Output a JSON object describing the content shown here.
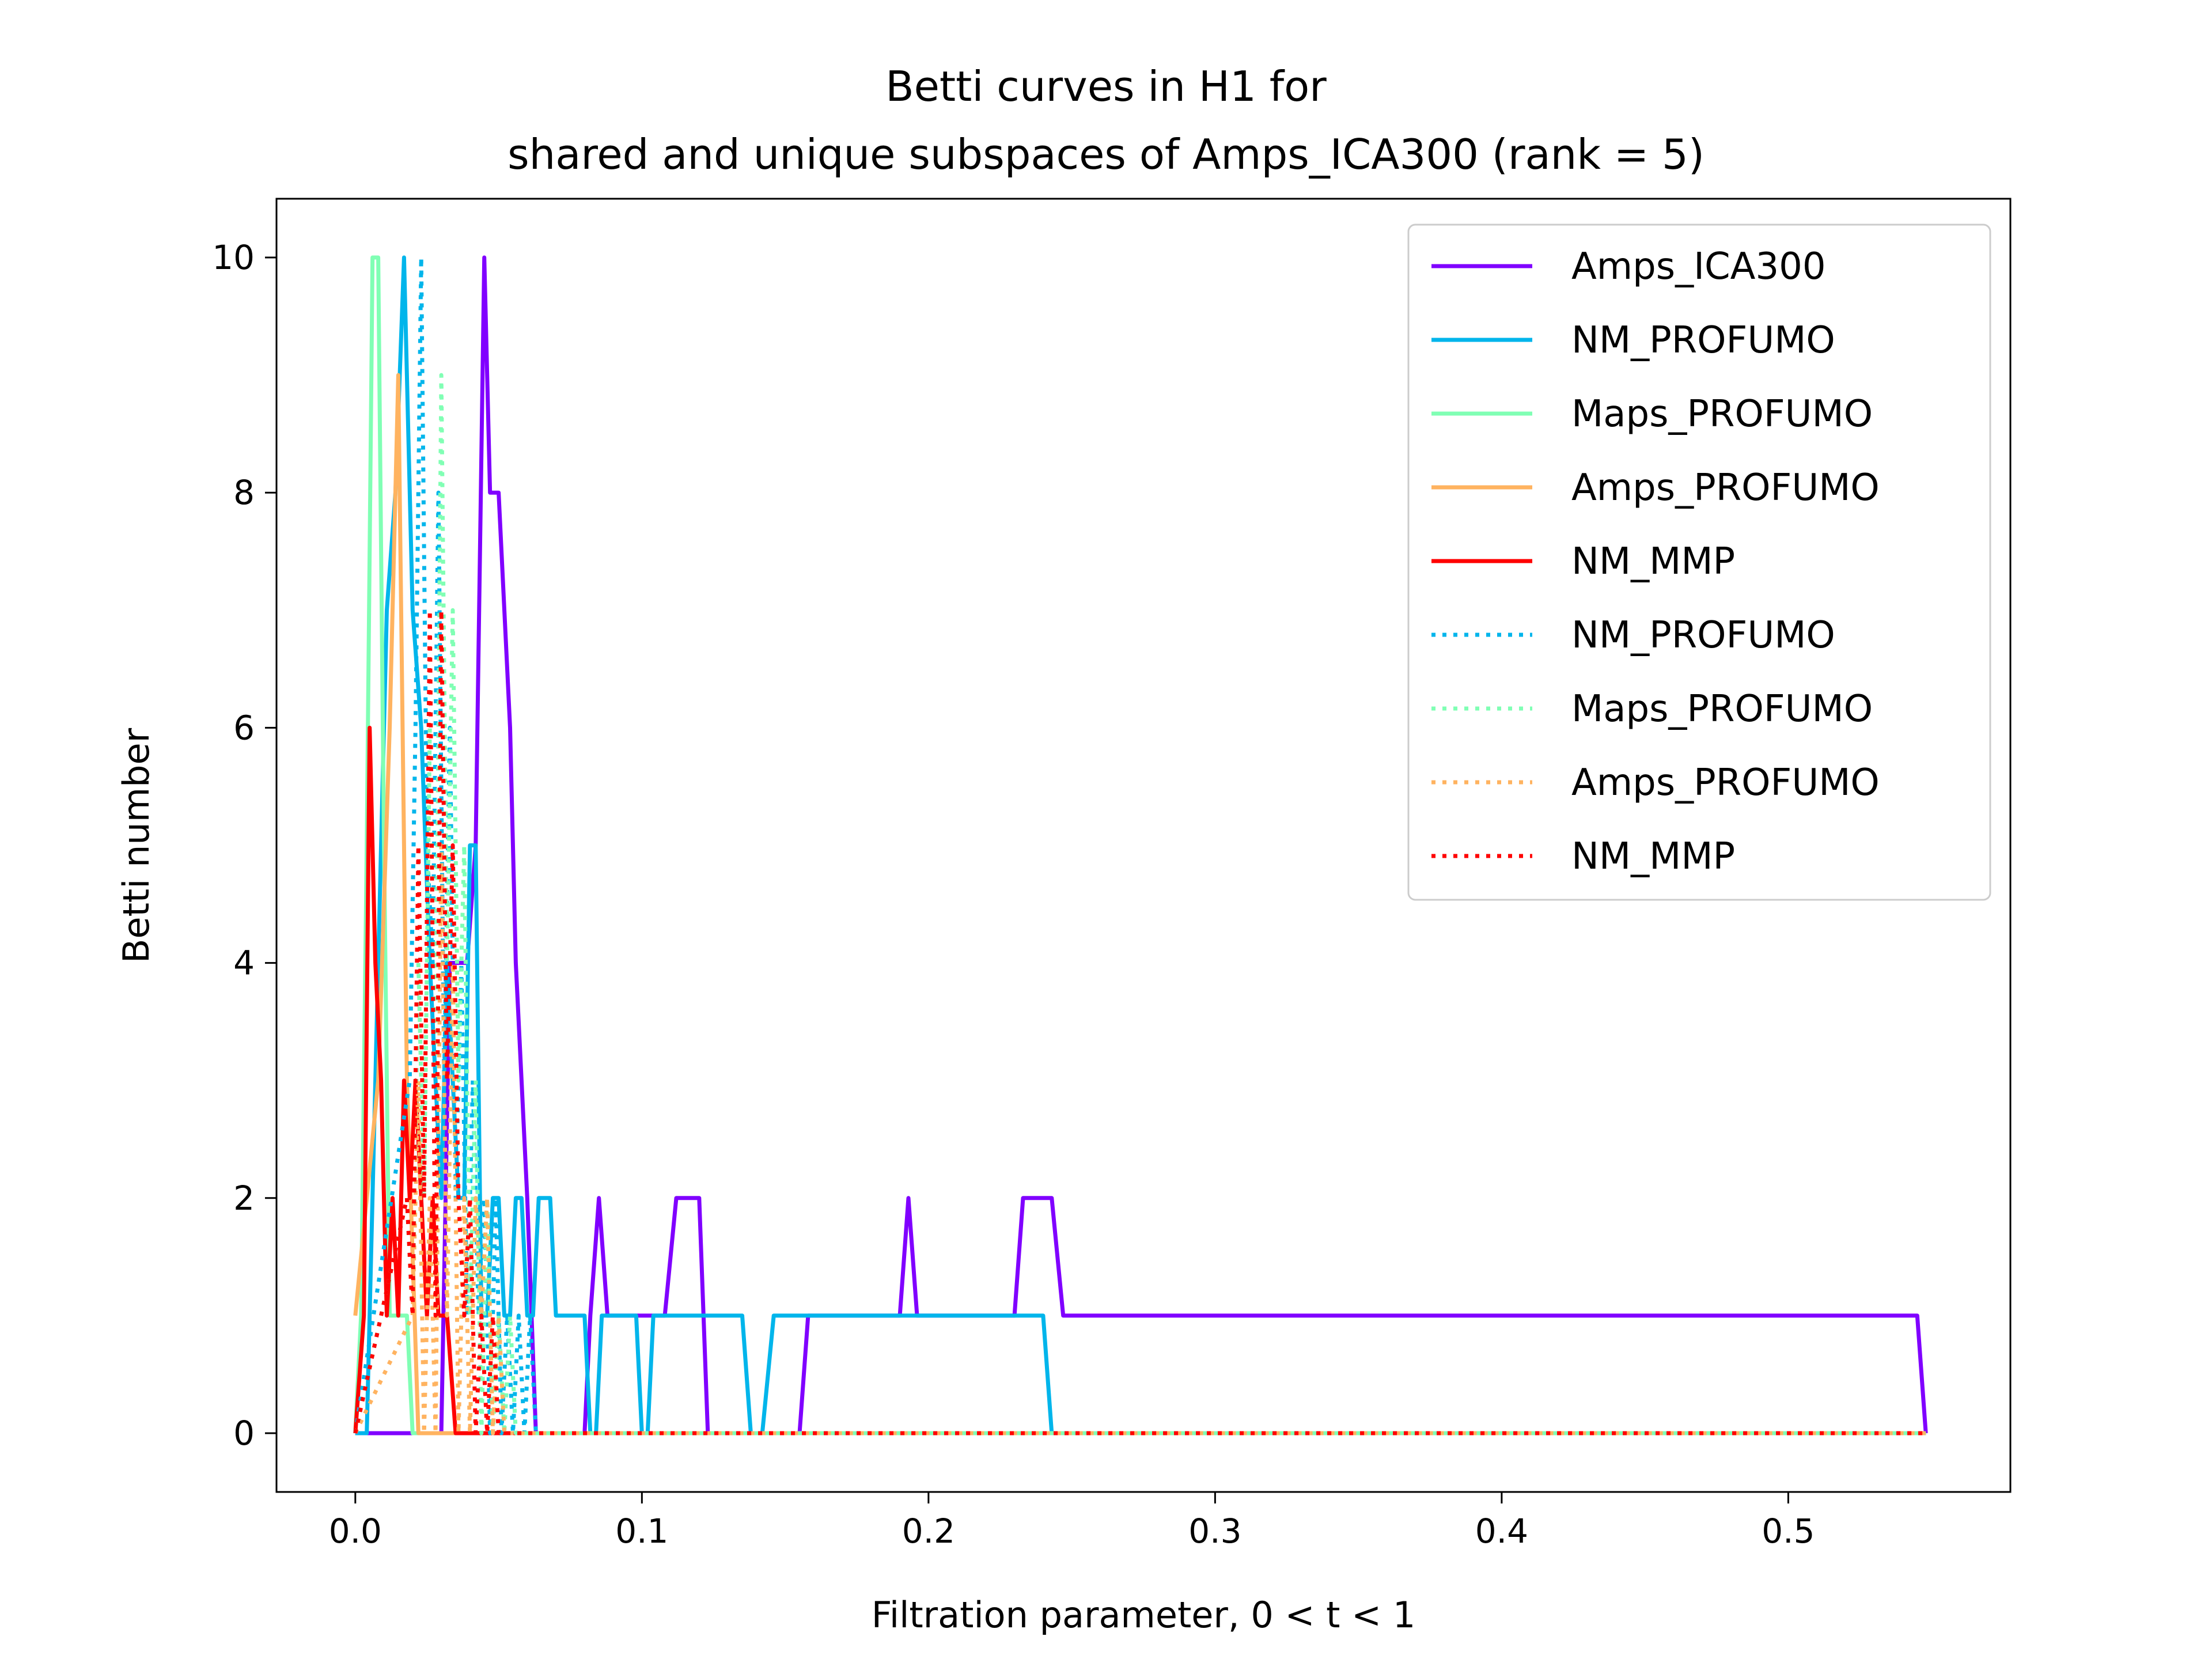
{
  "chart_data": {
    "type": "line",
    "title": [
      "Betti curves in H1 for",
      "shared and unique subspaces of Amps_ICA300 (rank = 5)"
    ],
    "xlabel": "Filtration parameter, 0 < t < 1",
    "ylabel": "Betti number",
    "xlim": [
      -0.0275,
      0.5775
    ],
    "ylim": [
      -0.5,
      10.5
    ],
    "xticks": [
      0.0,
      0.1,
      0.2,
      0.3,
      0.4,
      0.5
    ],
    "xtick_labels": [
      "0.0",
      "0.1",
      "0.2",
      "0.3",
      "0.4",
      "0.5"
    ],
    "yticks": [
      0,
      2,
      4,
      6,
      8,
      10
    ],
    "ytick_labels": [
      "0",
      "2",
      "4",
      "6",
      "8",
      "10"
    ],
    "grid": false,
    "legend_position": "top-right",
    "series": [
      {
        "name": "Amps_ICA300",
        "color": "#8000ff",
        "style": "solid",
        "x": [
          0,
          0.03,
          0.033,
          0.036,
          0.039,
          0.042,
          0.045,
          0.047,
          0.05,
          0.054,
          0.056,
          0.058,
          0.06,
          0.063,
          0.065,
          0.08,
          0.082,
          0.085,
          0.088,
          0.092,
          0.1,
          0.108,
          0.112,
          0.12,
          0.123,
          0.155,
          0.158,
          0.19,
          0.193,
          0.196,
          0.23,
          0.233,
          0.243,
          0.247,
          0.545,
          0.548
        ],
        "y": [
          0,
          0,
          4,
          4,
          4,
          5,
          10,
          8,
          8,
          6,
          4,
          3,
          2,
          0,
          0,
          0,
          1,
          2,
          1,
          1,
          1,
          1,
          2,
          2,
          0,
          0,
          1,
          1,
          2,
          1,
          1,
          2,
          2,
          1,
          1,
          0
        ]
      },
      {
        "name": "NM_PROFUMO",
        "color": "#00b5eb",
        "style": "solid",
        "x": [
          0,
          0.004,
          0.008,
          0.011,
          0.014,
          0.017,
          0.02,
          0.023,
          0.026,
          0.028,
          0.03,
          0.032,
          0.034,
          0.036,
          0.038,
          0.04,
          0.042,
          0.044,
          0.046,
          0.048,
          0.05,
          0.052,
          0.054,
          0.056,
          0.058,
          0.06,
          0.062,
          0.064,
          0.068,
          0.07,
          0.08,
          0.082,
          0.084,
          0.086,
          0.098,
          0.1,
          0.102,
          0.104,
          0.135,
          0.138,
          0.142,
          0.146,
          0.24,
          0.243,
          0.548
        ],
        "y": [
          0,
          0,
          4,
          7,
          8,
          10,
          7,
          6,
          4,
          3,
          2,
          4,
          3,
          2,
          2,
          5,
          5,
          1,
          1,
          2,
          2,
          1,
          1,
          2,
          2,
          1,
          1,
          2,
          2,
          1,
          1,
          0,
          0,
          1,
          1,
          0,
          0,
          1,
          1,
          0,
          0,
          1,
          1,
          0,
          0
        ]
      },
      {
        "name": "Maps_PROFUMO",
        "color": "#80ffb4",
        "style": "solid",
        "x": [
          0,
          0.002,
          0.004,
          0.006,
          0.008,
          0.01,
          0.012,
          0.014,
          0.016,
          0.018,
          0.02,
          0.022,
          0.03,
          0.035,
          0.548
        ],
        "y": [
          0,
          1,
          5,
          10,
          10,
          5,
          1,
          1,
          1,
          1,
          0,
          0,
          0,
          0,
          0
        ]
      },
      {
        "name": "Amps_PROFUMO",
        "color": "#ffb360",
        "style": "solid",
        "x": [
          0,
          0.004,
          0.008,
          0.012,
          0.015,
          0.018,
          0.022,
          0.03,
          0.548
        ],
        "y": [
          1,
          2,
          3,
          6,
          9,
          3,
          0,
          0,
          0
        ]
      },
      {
        "name": "NM_MMP",
        "color": "#ff0000",
        "style": "solid",
        "x": [
          0,
          0.003,
          0.005,
          0.007,
          0.009,
          0.011,
          0.013,
          0.015,
          0.017,
          0.019,
          0.021,
          0.023,
          0.025,
          0.027,
          0.029,
          0.032,
          0.035,
          0.038,
          0.04,
          0.548
        ],
        "y": [
          0,
          1,
          6,
          4,
          3,
          1,
          2,
          1,
          3,
          2,
          3,
          2,
          1,
          2,
          1,
          1,
          0,
          0,
          0,
          0
        ]
      },
      {
        "name": "NM_PROFUMO",
        "color": "#00b5eb",
        "style": "dotted",
        "x": [
          0,
          0.019,
          0.021,
          0.023,
          0.025,
          0.027,
          0.029,
          0.031,
          0.033,
          0.035,
          0.037,
          0.039,
          0.041,
          0.043,
          0.045,
          0.047,
          0.049,
          0.051,
          0.053,
          0.055,
          0.057,
          0.059,
          0.061,
          0.063,
          0.065,
          0.548
        ],
        "y": [
          0,
          3,
          6,
          10,
          5,
          4,
          8,
          3,
          6,
          2,
          4,
          1,
          3,
          1,
          2,
          0,
          2,
          0,
          1,
          0,
          1,
          0,
          1,
          0,
          0,
          0
        ]
      },
      {
        "name": "Maps_PROFUMO",
        "color": "#80ffb4",
        "style": "dotted",
        "x": [
          0,
          0.018,
          0.02,
          0.022,
          0.024,
          0.026,
          0.028,
          0.03,
          0.032,
          0.034,
          0.036,
          0.038,
          0.04,
          0.042,
          0.044,
          0.046,
          0.048,
          0.05,
          0.052,
          0.054,
          0.056,
          0.058,
          0.06,
          0.548
        ],
        "y": [
          0,
          2,
          1,
          4,
          2,
          6,
          3,
          9,
          4,
          7,
          3,
          5,
          1,
          3,
          0,
          2,
          0,
          1,
          0,
          1,
          0,
          0,
          0,
          0
        ]
      },
      {
        "name": "Amps_PROFUMO",
        "color": "#ffb360",
        "style": "dotted",
        "x": [
          0,
          0.02,
          0.022,
          0.024,
          0.026,
          0.028,
          0.03,
          0.032,
          0.034,
          0.036,
          0.038,
          0.04,
          0.042,
          0.044,
          0.046,
          0.048,
          0.05,
          0.052,
          0.054,
          0.548
        ],
        "y": [
          0,
          1,
          3,
          0,
          2,
          0,
          5,
          1,
          4,
          0,
          2,
          0,
          2,
          1,
          2,
          0,
          1,
          0,
          0,
          0
        ]
      },
      {
        "name": "NM_MMP",
        "color": "#ff0000",
        "style": "dotted",
        "x": [
          0,
          0.018,
          0.02,
          0.022,
          0.024,
          0.026,
          0.028,
          0.03,
          0.032,
          0.034,
          0.036,
          0.038,
          0.04,
          0.042,
          0.044,
          0.046,
          0.048,
          0.05,
          0.548
        ],
        "y": [
          0,
          2,
          1,
          5,
          2,
          7,
          1,
          7,
          3,
          5,
          2,
          1,
          2,
          0,
          1,
          0,
          1,
          0,
          0
        ]
      }
    ]
  }
}
